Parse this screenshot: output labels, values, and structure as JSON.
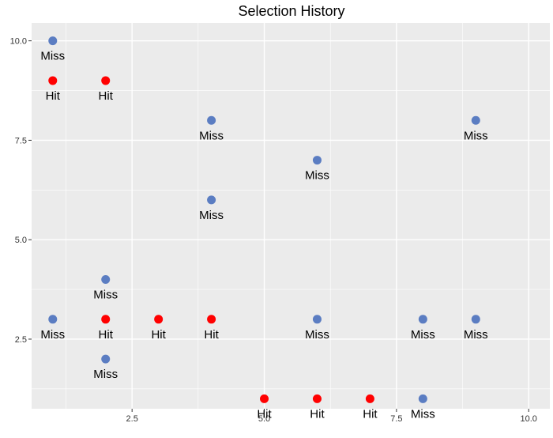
{
  "chart_data": {
    "type": "scatter",
    "title": "Selection History",
    "xlabel": "",
    "ylabel": "",
    "xlim": [
      0.6,
      10.4
    ],
    "ylim": [
      0.75,
      10.45
    ],
    "x_ticks": [
      2.5,
      5.0,
      7.5,
      10.0
    ],
    "y_ticks": [
      2.5,
      5.0,
      7.5,
      10.0
    ],
    "x_tick_labels": [
      "2.5",
      "5.0",
      "7.5",
      "10.0"
    ],
    "y_tick_labels": [
      "2.5",
      "5.0",
      "7.5",
      "10.0"
    ],
    "grid": true,
    "legend": false,
    "colors": {
      "background": "#EBEBEB",
      "grid": "#FFFFFF",
      "hit": "#FF0000",
      "miss": "#5B7DC2",
      "text": "#000000",
      "tick_text": "#333333"
    },
    "points": [
      {
        "x": 1,
        "y": 10,
        "label": "Miss"
      },
      {
        "x": 1,
        "y": 9,
        "label": "Hit"
      },
      {
        "x": 2,
        "y": 9,
        "label": "Hit"
      },
      {
        "x": 4,
        "y": 8,
        "label": "Miss"
      },
      {
        "x": 9,
        "y": 8,
        "label": "Miss"
      },
      {
        "x": 6,
        "y": 7,
        "label": "Miss"
      },
      {
        "x": 4,
        "y": 6,
        "label": "Miss"
      },
      {
        "x": 2,
        "y": 4,
        "label": "Miss"
      },
      {
        "x": 1,
        "y": 3,
        "label": "Miss"
      },
      {
        "x": 2,
        "y": 3,
        "label": "Hit"
      },
      {
        "x": 3,
        "y": 3,
        "label": "Hit"
      },
      {
        "x": 4,
        "y": 3,
        "label": "Hit"
      },
      {
        "x": 6,
        "y": 3,
        "label": "Miss"
      },
      {
        "x": 8,
        "y": 3,
        "label": "Miss"
      },
      {
        "x": 9,
        "y": 3,
        "label": "Miss"
      },
      {
        "x": 2,
        "y": 2,
        "label": "Miss"
      },
      {
        "x": 5,
        "y": 1,
        "label": "Hit"
      },
      {
        "x": 6,
        "y": 1,
        "label": "Hit"
      },
      {
        "x": 7,
        "y": 1,
        "label": "Hit"
      },
      {
        "x": 8,
        "y": 1,
        "label": "Miss"
      }
    ]
  }
}
